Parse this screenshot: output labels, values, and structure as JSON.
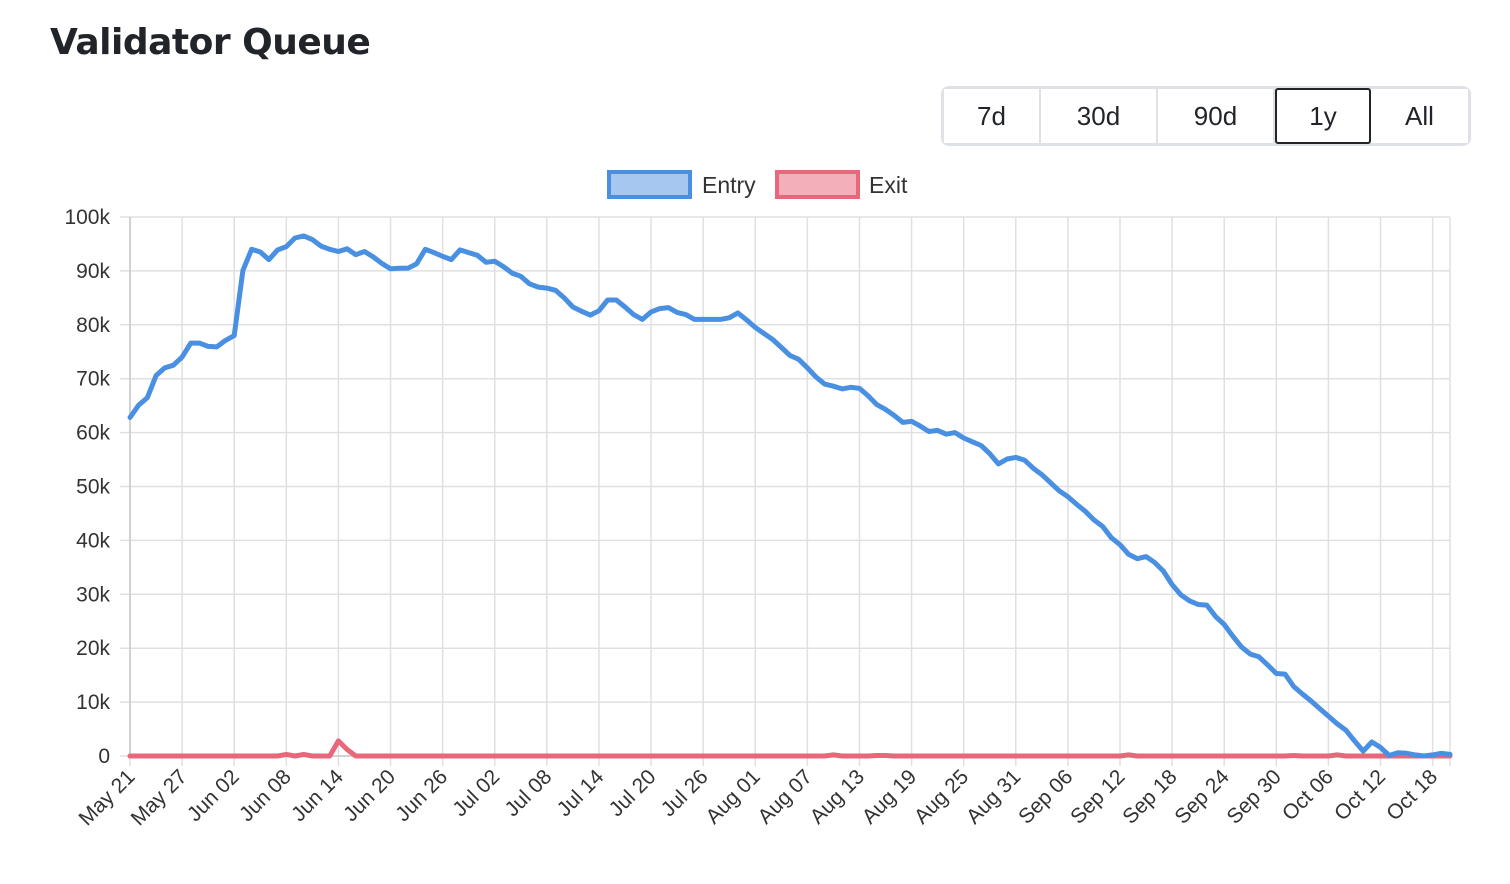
{
  "title": "Validator Queue",
  "range_buttons": [
    {
      "label": "7d",
      "active": false
    },
    {
      "label": "30d",
      "active": false
    },
    {
      "label": "90d",
      "active": false
    },
    {
      "label": "1y",
      "active": true
    },
    {
      "label": "All",
      "active": false
    }
  ],
  "chart_data": {
    "type": "line",
    "title": "",
    "xlabel": "",
    "ylabel": "",
    "ylim": [
      0,
      100000
    ],
    "y_ticks": [
      "0",
      "10k",
      "20k",
      "30k",
      "40k",
      "50k",
      "60k",
      "70k",
      "80k",
      "90k",
      "100k"
    ],
    "x_tick_labels": [
      "May 21",
      "May 27",
      "Jun 02",
      "Jun 08",
      "Jun 14",
      "Jun 20",
      "Jun 26",
      "Jul 02",
      "Jul 08",
      "Jul 14",
      "Jul 20",
      "Jul 26",
      "Aug 01",
      "Aug 07",
      "Aug 13",
      "Aug 19",
      "Aug 25",
      "Aug 31",
      "Sep 06",
      "Sep 12",
      "Sep 18",
      "Sep 24",
      "Sep 30",
      "Oct 06",
      "Oct 12",
      "Oct 18"
    ],
    "x_start": "May 21",
    "x_end": "Oct 19",
    "grid": true,
    "legend_position": "top",
    "series": [
      {
        "name": "Entry",
        "color": "#4a90e2",
        "fill": "#a6c8f0",
        "values": [
          62800,
          65100,
          66500,
          70600,
          72000,
          72500,
          74000,
          76600,
          76600,
          76000,
          75900,
          77100,
          78000,
          90100,
          94000,
          93500,
          92100,
          93900,
          94500,
          96100,
          96500,
          95800,
          94600,
          94000,
          93600,
          94100,
          93000,
          93600,
          92600,
          91400,
          90400,
          90500,
          90500,
          91300,
          94000,
          93400,
          92700,
          92100,
          93900,
          93400,
          92900,
          91600,
          91800,
          90800,
          89600,
          89000,
          87600,
          87000,
          86800,
          86400,
          85000,
          83300,
          82500,
          81800,
          82600,
          84600,
          84600,
          83300,
          81900,
          81000,
          82400,
          83000,
          83200,
          82300,
          81900,
          81000,
          81000,
          81000,
          81000,
          81300,
          82200,
          80900,
          79500,
          78400,
          77300,
          75800,
          74300,
          73600,
          72000,
          70300,
          69000,
          68600,
          68100,
          68400,
          68200,
          66800,
          65200,
          64300,
          63200,
          61900,
          62100,
          61200,
          60200,
          60400,
          59700,
          60000,
          59000,
          58300,
          57600,
          56100,
          54200,
          55100,
          55400,
          54900,
          53400,
          52200,
          50700,
          49200,
          48100,
          46700,
          45400,
          43800,
          42600,
          40500,
          39200,
          37400,
          36600,
          37000,
          35900,
          34300,
          31800,
          29900,
          28800,
          28100,
          28000,
          25900,
          24400,
          22200,
          20200,
          18900,
          18400,
          16900,
          15300,
          15200,
          12900,
          11500,
          10200,
          8800,
          7400,
          6000,
          4800,
          2800,
          900,
          2600,
          1600,
          100,
          600,
          500,
          200,
          0,
          200,
          500,
          300
        ]
      },
      {
        "name": "Exit",
        "color": "#e8677a",
        "fill": "#f4b0ba",
        "values": [
          0,
          0,
          0,
          0,
          0,
          0,
          0,
          0,
          0,
          0,
          0,
          0,
          0,
          0,
          0,
          0,
          0,
          0,
          300,
          0,
          300,
          0,
          0,
          0,
          2800,
          1200,
          0,
          0,
          0,
          0,
          0,
          0,
          0,
          0,
          0,
          0,
          0,
          0,
          0,
          0,
          0,
          0,
          0,
          0,
          0,
          0,
          0,
          0,
          0,
          0,
          0,
          0,
          0,
          0,
          0,
          0,
          0,
          0,
          0,
          0,
          0,
          0,
          0,
          0,
          0,
          0,
          0,
          0,
          0,
          0,
          0,
          0,
          0,
          0,
          0,
          0,
          0,
          0,
          0,
          0,
          0,
          200,
          0,
          0,
          0,
          0,
          100,
          100,
          0,
          0,
          0,
          0,
          0,
          0,
          0,
          0,
          0,
          0,
          0,
          0,
          0,
          0,
          0,
          0,
          0,
          0,
          0,
          0,
          0,
          0,
          0,
          0,
          0,
          0,
          0,
          200,
          0,
          0,
          0,
          0,
          0,
          0,
          0,
          0,
          0,
          0,
          0,
          0,
          0,
          0,
          0,
          0,
          0,
          0,
          100,
          0,
          0,
          0,
          0,
          200,
          0,
          0,
          0,
          0,
          0,
          0,
          0,
          0,
          0,
          0,
          0,
          0,
          0
        ]
      }
    ]
  }
}
